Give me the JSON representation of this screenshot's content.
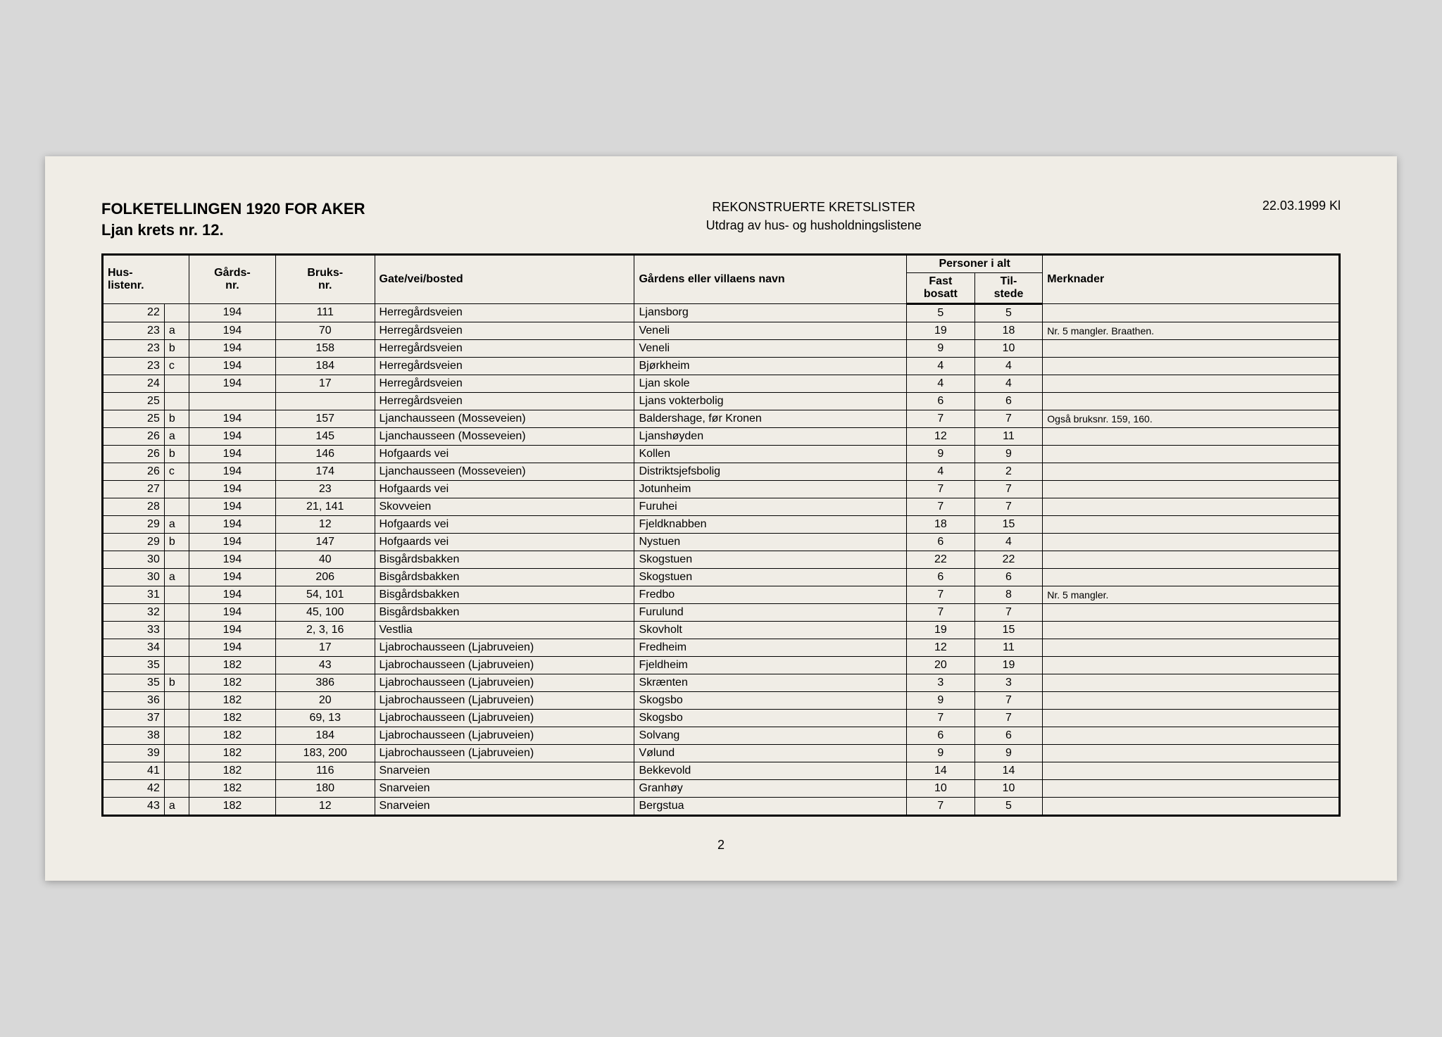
{
  "header": {
    "title": "FOLKETELLINGEN 1920 FOR AKER",
    "subtitle": "Ljan krets nr. 12.",
    "center1": "REKONSTRUERTE KRETSLISTER",
    "center2": "Utdrag av hus- og husholdningslistene",
    "date": "22.03.1999 Kl"
  },
  "columns": {
    "hus1": "Hus-",
    "hus2": "listenr.",
    "gards1": "Gårds-",
    "gards2": "nr.",
    "bruks1": "Bruks-",
    "bruks2": "nr.",
    "gate": "Gate/vei/bosted",
    "gard": "Gårdens eller villaens navn",
    "personer": "Personer i alt",
    "fast1": "Fast",
    "fast2": "bosatt",
    "til1": "Til-",
    "til2": "stede",
    "merk": "Merknader"
  },
  "rows": [
    {
      "nr": "22",
      "sfx": "",
      "gards": "194",
      "bruks": "111",
      "gate": "Herregårdsveien",
      "gard": "Ljansborg",
      "fast": "5",
      "til": "5",
      "merk": ""
    },
    {
      "nr": "23",
      "sfx": "a",
      "gards": "194",
      "bruks": "70",
      "gate": "Herregårdsveien",
      "gard": "Veneli",
      "fast": "19",
      "til": "18",
      "merk": "Nr. 5 mangler. Braathen."
    },
    {
      "nr": "23",
      "sfx": "b",
      "gards": "194",
      "bruks": "158",
      "gate": "Herregårdsveien",
      "gard": "Veneli",
      "fast": "9",
      "til": "10",
      "merk": ""
    },
    {
      "nr": "23",
      "sfx": "c",
      "gards": "194",
      "bruks": "184",
      "gate": "Herregårdsveien",
      "gard": "Bjørkheim",
      "fast": "4",
      "til": "4",
      "merk": ""
    },
    {
      "nr": "24",
      "sfx": "",
      "gards": "194",
      "bruks": "17",
      "gate": "Herregårdsveien",
      "gard": "Ljan skole",
      "fast": "4",
      "til": "4",
      "merk": ""
    },
    {
      "nr": "25",
      "sfx": "",
      "gards": "",
      "bruks": "",
      "gate": "Herregårdsveien",
      "gard": "Ljans vokterbolig",
      "fast": "6",
      "til": "6",
      "merk": ""
    },
    {
      "nr": "25",
      "sfx": "b",
      "gards": "194",
      "bruks": "157",
      "gate": "Ljanchausseen (Mosseveien)",
      "gard": "Baldershage, før Kronen",
      "fast": "7",
      "til": "7",
      "merk": "Også bruksnr. 159, 160."
    },
    {
      "nr": "26",
      "sfx": "a",
      "gards": "194",
      "bruks": "145",
      "gate": "Ljanchausseen (Mosseveien)",
      "gard": "Ljanshøyden",
      "fast": "12",
      "til": "11",
      "merk": ""
    },
    {
      "nr": "26",
      "sfx": "b",
      "gards": "194",
      "bruks": "146",
      "gate": "Hofgaards vei",
      "gard": "Kollen",
      "fast": "9",
      "til": "9",
      "merk": ""
    },
    {
      "nr": "26",
      "sfx": "c",
      "gards": "194",
      "bruks": "174",
      "gate": "Ljanchausseen (Mosseveien)",
      "gard": "Distriktsjefsbolig",
      "fast": "4",
      "til": "2",
      "merk": ""
    },
    {
      "nr": "27",
      "sfx": "",
      "gards": "194",
      "bruks": "23",
      "gate": "Hofgaards vei",
      "gard": "Jotunheim",
      "fast": "7",
      "til": "7",
      "merk": ""
    },
    {
      "nr": "28",
      "sfx": "",
      "gards": "194",
      "bruks": "21, 141",
      "gate": "Skovveien",
      "gard": "Furuhei",
      "fast": "7",
      "til": "7",
      "merk": ""
    },
    {
      "nr": "29",
      "sfx": "a",
      "gards": "194",
      "bruks": "12",
      "gate": "Hofgaards vei",
      "gard": "Fjeldknabben",
      "fast": "18",
      "til": "15",
      "merk": ""
    },
    {
      "nr": "29",
      "sfx": "b",
      "gards": "194",
      "bruks": "147",
      "gate": "Hofgaards vei",
      "gard": "Nystuen",
      "fast": "6",
      "til": "4",
      "merk": ""
    },
    {
      "nr": "30",
      "sfx": "",
      "gards": "194",
      "bruks": "40",
      "gate": "Bisgårdsbakken",
      "gard": "Skogstuen",
      "fast": "22",
      "til": "22",
      "merk": ""
    },
    {
      "nr": "30",
      "sfx": "a",
      "gards": "194",
      "bruks": "206",
      "gate": "Bisgårdsbakken",
      "gard": "Skogstuen",
      "fast": "6",
      "til": "6",
      "merk": ""
    },
    {
      "nr": "31",
      "sfx": "",
      "gards": "194",
      "bruks": "54, 101",
      "gate": "Bisgårdsbakken",
      "gard": "Fredbo",
      "fast": "7",
      "til": "8",
      "merk": "Nr. 5 mangler."
    },
    {
      "nr": "32",
      "sfx": "",
      "gards": "194",
      "bruks": "45, 100",
      "gate": "Bisgårdsbakken",
      "gard": "Furulund",
      "fast": "7",
      "til": "7",
      "merk": ""
    },
    {
      "nr": "33",
      "sfx": "",
      "gards": "194",
      "bruks": "2, 3, 16",
      "gate": "Vestlia",
      "gard": "Skovholt",
      "fast": "19",
      "til": "15",
      "merk": ""
    },
    {
      "nr": "34",
      "sfx": "",
      "gards": "194",
      "bruks": "17",
      "gate": "Ljabrochausseen (Ljabruveien)",
      "gard": "Fredheim",
      "fast": "12",
      "til": "11",
      "merk": ""
    },
    {
      "nr": "35",
      "sfx": "",
      "gards": "182",
      "bruks": "43",
      "gate": "Ljabrochausseen (Ljabruveien)",
      "gard": "Fjeldheim",
      "fast": "20",
      "til": "19",
      "merk": ""
    },
    {
      "nr": "35",
      "sfx": "b",
      "gards": "182",
      "bruks": "386",
      "gate": "Ljabrochausseen (Ljabruveien)",
      "gard": "Skrænten",
      "fast": "3",
      "til": "3",
      "merk": ""
    },
    {
      "nr": "36",
      "sfx": "",
      "gards": "182",
      "bruks": "20",
      "gate": "Ljabrochausseen (Ljabruveien)",
      "gard": "Skogsbo",
      "fast": "9",
      "til": "7",
      "merk": ""
    },
    {
      "nr": "37",
      "sfx": "",
      "gards": "182",
      "bruks": "69, 13",
      "gate": "Ljabrochausseen (Ljabruveien)",
      "gard": "Skogsbo",
      "fast": "7",
      "til": "7",
      "merk": ""
    },
    {
      "nr": "38",
      "sfx": "",
      "gards": "182",
      "bruks": "184",
      "gate": "Ljabrochausseen (Ljabruveien)",
      "gard": "Solvang",
      "fast": "6",
      "til": "6",
      "merk": ""
    },
    {
      "nr": "39",
      "sfx": "",
      "gards": "182",
      "bruks": "183, 200",
      "gate": "Ljabrochausseen (Ljabruveien)",
      "gard": "Vølund",
      "fast": "9",
      "til": "9",
      "merk": ""
    },
    {
      "nr": "41",
      "sfx": "",
      "gards": "182",
      "bruks": "116",
      "gate": "Snarveien",
      "gard": "Bekkevold",
      "fast": "14",
      "til": "14",
      "merk": ""
    },
    {
      "nr": "42",
      "sfx": "",
      "gards": "182",
      "bruks": "180",
      "gate": "Snarveien",
      "gard": "Granhøy",
      "fast": "10",
      "til": "10",
      "merk": ""
    },
    {
      "nr": "43",
      "sfx": "a",
      "gards": "182",
      "bruks": "12",
      "gate": "Snarveien",
      "gard": "Bergstua",
      "fast": "7",
      "til": "5",
      "merk": ""
    }
  ],
  "pageNumber": "2",
  "style": {
    "page_bg": "#f0ede6",
    "outer_bg": "#d8d8d8",
    "border_color": "#000000",
    "body_fontsize": 16,
    "header_fontsize": 22
  }
}
